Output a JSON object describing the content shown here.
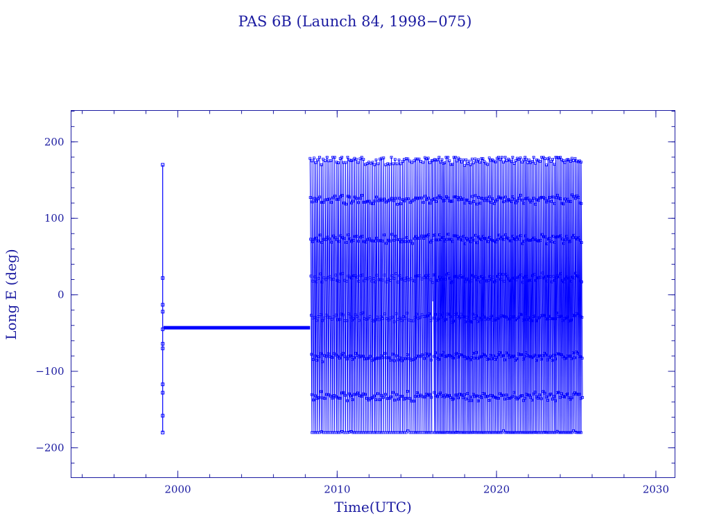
{
  "chart_data": {
    "type": "line",
    "title": "PAS 6B (Launch 84, 1998−075)",
    "xlabel": "Time(UTC)",
    "ylabel": "Long E (deg)",
    "xlim": [
      1993.3,
      2031.2
    ],
    "ylim": [
      -239,
      241
    ],
    "x_ticks": [
      {
        "value": 2000,
        "label": "2000"
      },
      {
        "value": 2010,
        "label": "2010"
      },
      {
        "value": 2020,
        "label": "2020"
      },
      {
        "value": 2030,
        "label": "2030"
      }
    ],
    "y_ticks": [
      {
        "value": 200,
        "label": "200"
      },
      {
        "value": 100,
        "label": "100"
      },
      {
        "value": 0,
        "label": "0"
      },
      {
        "value": -100,
        "label": "−100"
      },
      {
        "value": -200,
        "label": "−200"
      }
    ],
    "x_minor_step": 2,
    "y_minor_step": 20,
    "grid": false,
    "legend": "none",
    "colors": {
      "series": "#0000ff",
      "axis": "#1a1aa0"
    },
    "series": [
      {
        "marker": "square",
        "segments": [
          {
            "kind": "points",
            "x": [
              1999.05,
              1999.05,
              1999.05,
              1999.05,
              1999.05,
              1999.05,
              1999.05,
              1999.05,
              1999.05,
              1999.05,
              1999.05
            ],
            "y": [
              -180,
              -158,
              -128,
              -117,
              -70,
              -64,
              -45,
              -22,
              -13,
              22,
              170
            ]
          },
          {
            "kind": "steady",
            "x": [
              1999.1,
              2008.3
            ],
            "y": -43
          },
          {
            "kind": "drift",
            "x": [
              2008.3,
              2016.0
            ],
            "y_range": [
              -180,
              180
            ],
            "period_years": 0.115
          },
          {
            "kind": "drift",
            "x": [
              2016.0,
              2025.4
            ],
            "y_range": [
              -180,
              180
            ],
            "period_years": 0.095
          }
        ]
      }
    ]
  }
}
